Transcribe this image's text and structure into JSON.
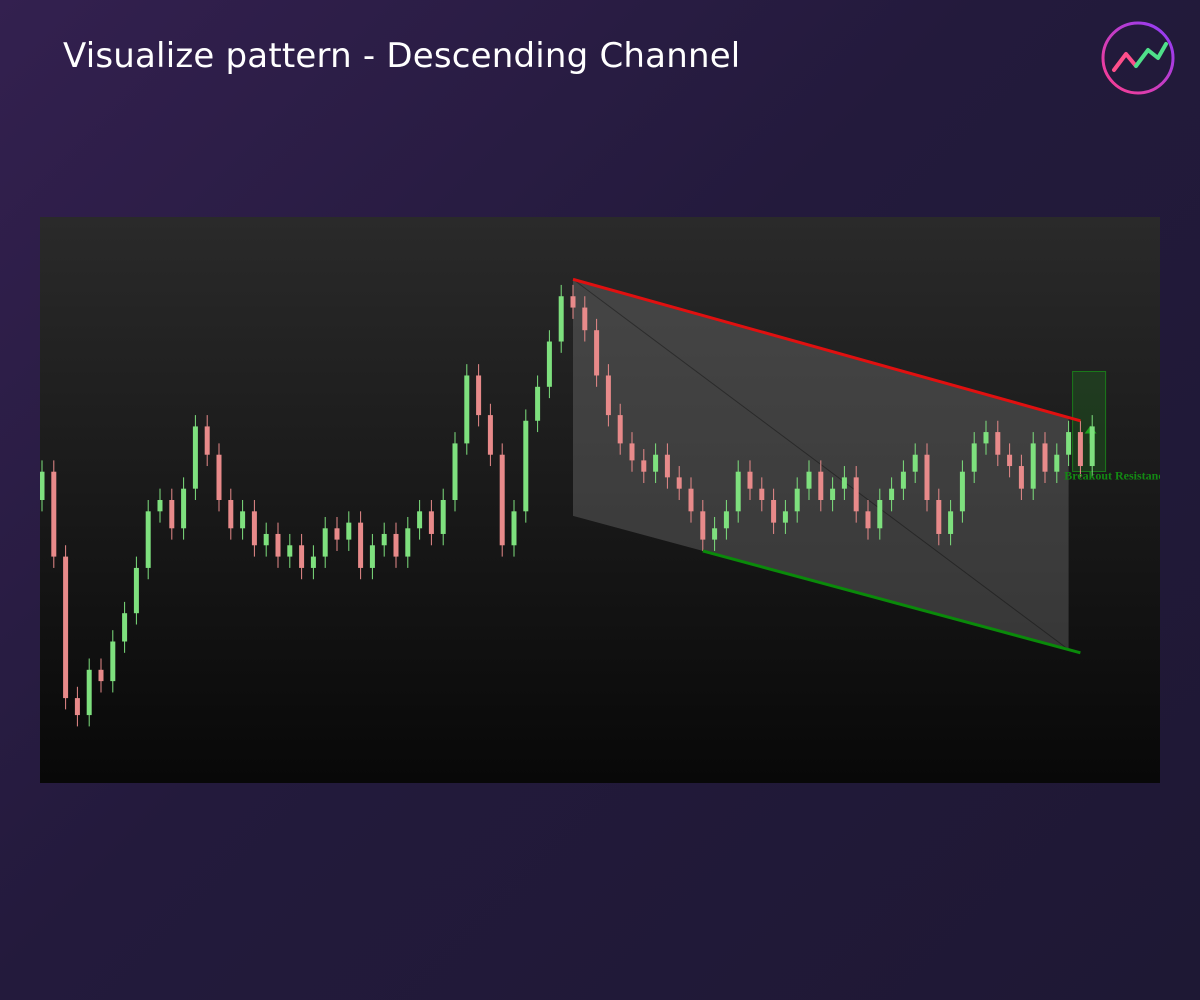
{
  "title": "Visualize pattern - Descending Channel",
  "chart_data": {
    "type": "candlestick",
    "ylim": [
      0,
      100
    ],
    "up_color": "#7ee07e",
    "down_color": "#e88a8a",
    "open": [
      50,
      55,
      40,
      15,
      12,
      20,
      18,
      25,
      30,
      38,
      48,
      50,
      45,
      52,
      63,
      58,
      50,
      45,
      48,
      42,
      44,
      40,
      42,
      38,
      40,
      45,
      43,
      46,
      38,
      42,
      44,
      40,
      45,
      48,
      44,
      50,
      60,
      72,
      65,
      58,
      42,
      48,
      64,
      70,
      78,
      86,
      84,
      80,
      72,
      65,
      60,
      57,
      55,
      58,
      54,
      52,
      48,
      43,
      45,
      48,
      55,
      52,
      50,
      46,
      48,
      52,
      55,
      50,
      52,
      54,
      48,
      45,
      50,
      52,
      55,
      58,
      50,
      44,
      48,
      55,
      60,
      62,
      58,
      56,
      52,
      60,
      55,
      58,
      62,
      56
    ],
    "high": [
      57,
      57,
      42,
      17,
      22,
      22,
      27,
      32,
      40,
      50,
      52,
      52,
      54,
      65,
      65,
      60,
      52,
      50,
      50,
      46,
      46,
      44,
      44,
      42,
      47,
      47,
      48,
      48,
      44,
      46,
      46,
      47,
      50,
      50,
      52,
      62,
      74,
      74,
      67,
      60,
      50,
      66,
      72,
      80,
      88,
      88,
      86,
      82,
      74,
      67,
      62,
      59,
      60,
      60,
      56,
      54,
      50,
      47,
      50,
      57,
      57,
      54,
      52,
      50,
      54,
      57,
      57,
      54,
      56,
      56,
      50,
      52,
      54,
      57,
      60,
      60,
      52,
      50,
      57,
      62,
      64,
      64,
      60,
      58,
      62,
      62,
      60,
      64,
      64,
      65
    ],
    "low": [
      48,
      38,
      13,
      10,
      10,
      16,
      16,
      23,
      28,
      36,
      46,
      43,
      43,
      50,
      56,
      48,
      43,
      43,
      40,
      40,
      38,
      38,
      36,
      36,
      38,
      41,
      41,
      36,
      36,
      40,
      38,
      38,
      43,
      42,
      42,
      48,
      58,
      63,
      56,
      40,
      40,
      46,
      62,
      68,
      76,
      82,
      78,
      70,
      63,
      58,
      55,
      53,
      53,
      52,
      50,
      46,
      41,
      41,
      43,
      46,
      50,
      48,
      44,
      44,
      46,
      50,
      48,
      48,
      50,
      46,
      43,
      43,
      48,
      50,
      53,
      48,
      42,
      42,
      46,
      53,
      58,
      56,
      54,
      50,
      50,
      53,
      53,
      56,
      54,
      54
    ],
    "close": [
      55,
      40,
      15,
      12,
      20,
      18,
      25,
      30,
      38,
      48,
      50,
      45,
      52,
      63,
      58,
      50,
      45,
      48,
      42,
      44,
      40,
      42,
      38,
      40,
      45,
      43,
      46,
      38,
      42,
      44,
      40,
      45,
      48,
      44,
      50,
      60,
      72,
      65,
      58,
      42,
      48,
      64,
      70,
      78,
      86,
      84,
      80,
      72,
      65,
      60,
      57,
      55,
      58,
      54,
      52,
      48,
      43,
      45,
      48,
      55,
      52,
      50,
      46,
      48,
      52,
      55,
      50,
      52,
      54,
      48,
      45,
      50,
      52,
      55,
      58,
      50,
      44,
      48,
      55,
      60,
      62,
      58,
      56,
      52,
      60,
      55,
      58,
      62,
      56,
      63
    ],
    "channel": {
      "upper": {
        "from": [
          45,
          89
        ],
        "to": [
          88,
          64
        ],
        "color": "#e01010"
      },
      "lower": {
        "from": [
          56,
          41
        ],
        "to": [
          88,
          23
        ],
        "color": "#0a8a0a"
      },
      "start": 45
    },
    "annotation": "Breakout Resistance"
  }
}
